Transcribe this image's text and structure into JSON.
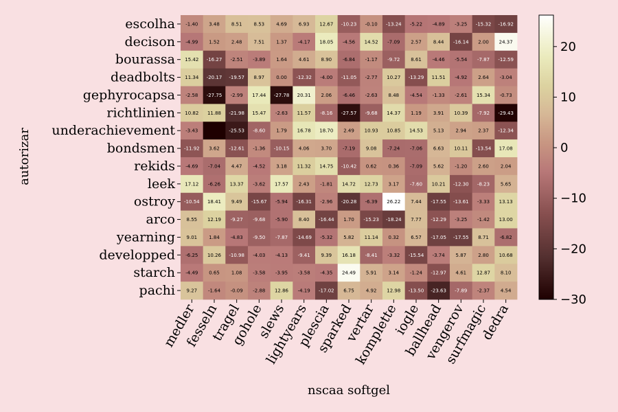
{
  "chart_data": {
    "type": "heatmap",
    "title": "",
    "xlabel": "nscaa softgel",
    "ylabel": "autorizar",
    "x_categories": [
      "medler",
      "fesseln",
      "tragel",
      "gohole",
      "slews",
      "lightyears",
      "plescia",
      "sparked",
      "vertar",
      "komplette",
      "iogle",
      "ballhead",
      "vengerov",
      "surfmagic",
      "dedra"
    ],
    "y_categories": [
      "escolha",
      "decison",
      "bourassa",
      "deadbolts",
      "gephyrocapsa",
      "richtlinien",
      "underachievement",
      "bondsmen",
      "rekids",
      "leek",
      "ostroy",
      "arco",
      "yearning",
      "developped",
      "starch",
      "pachi"
    ],
    "values": [
      [
        -1.4,
        3.48,
        8.51,
        8.53,
        4.69,
        6.93,
        12.67,
        -10.23,
        -0.1,
        -13.24,
        -5.22,
        -4.89,
        -3.25,
        -15.32,
        -16.92
      ],
      [
        -4.99,
        1.52,
        2.48,
        7.51,
        1.37,
        -4.17,
        18.05,
        -4.56,
        14.52,
        -7.09,
        2.57,
        8.44,
        -16.14,
        2.0,
        24.37
      ],
      [
        15.42,
        -16.27,
        -2.51,
        -3.89,
        1.64,
        4.61,
        8.9,
        -6.84,
        -1.17,
        -9.72,
        8.61,
        -4.46,
        -5.54,
        -7.87,
        -12.59
      ],
      [
        11.34,
        -20.17,
        -19.57,
        8.97,
        0.0,
        -12.32,
        -4.0,
        -11.05,
        -2.77,
        10.27,
        -13.29,
        11.51,
        -4.92,
        2.64,
        -3.04
      ],
      [
        -2.58,
        -27.75,
        -2.99,
        17.44,
        -27.78,
        20.31,
        2.06,
        -6.46,
        -2.63,
        8.48,
        -4.54,
        -1.33,
        -2.61,
        15.34,
        -0.73
      ],
      [
        10.82,
        11.88,
        -21.98,
        15.47,
        -2.63,
        11.57,
        -8.16,
        -27.57,
        -9.68,
        14.37,
        1.19,
        3.91,
        10.39,
        -7.92,
        -29.43
      ],
      [
        -3.43,
        -30.0,
        -25.53,
        -8.6,
        1.79,
        16.78,
        18.7,
        2.49,
        10.93,
        10.85,
        14.53,
        5.13,
        2.94,
        2.37,
        -12.34
      ],
      [
        -11.92,
        3.62,
        -12.61,
        -1.36,
        -10.15,
        4.06,
        3.7,
        -7.19,
        9.08,
        -7.24,
        -7.06,
        6.63,
        10.11,
        -13.54,
        17.08
      ],
      [
        -4.69,
        -7.04,
        4.47,
        -4.52,
        3.18,
        11.32,
        14.75,
        -10.42,
        0.62,
        0.36,
        -7.09,
        5.62,
        -1.2,
        2.6,
        2.04
      ],
      [
        17.12,
        -6.26,
        13.37,
        -3.62,
        17.57,
        2.43,
        -1.81,
        14.72,
        12.73,
        3.17,
        -7.6,
        10.21,
        -12.3,
        -8.23,
        5.65
      ],
      [
        -10.54,
        18.41,
        9.49,
        -15.67,
        -5.94,
        -16.31,
        -2.96,
        -20.28,
        -6.39,
        26.22,
        7.44,
        -17.55,
        -13.61,
        -3.33,
        13.13
      ],
      [
        8.55,
        12.19,
        -9.27,
        -9.68,
        -5.9,
        8.4,
        -16.44,
        1.7,
        -15.23,
        -18.24,
        7.77,
        -12.29,
        -3.25,
        -1.42,
        13.0
      ],
      [
        9.01,
        1.84,
        -4.83,
        -9.5,
        -7.87,
        -14.69,
        -5.32,
        5.82,
        11.14,
        0.32,
        6.57,
        -17.05,
        -17.55,
        8.71,
        -6.82
      ],
      [
        -6.25,
        10.26,
        -10.98,
        -4.03,
        -4.13,
        -9.41,
        9.39,
        16.18,
        -8.41,
        -3.32,
        -15.54,
        -3.74,
        5.87,
        2.8,
        10.68
      ],
      [
        -4.49,
        0.65,
        1.08,
        -3.58,
        -3.95,
        -3.58,
        -4.35,
        24.49,
        5.91,
        3.14,
        -1.24,
        -12.97,
        4.61,
        12.87,
        8.1
      ],
      [
        9.27,
        -1.64,
        -0.09,
        -2.88,
        12.86,
        -4.19,
        -17.02,
        6.75,
        4.92,
        12.98,
        -13.5,
        -23.63,
        -7.89,
        -2.37,
        4.54
      ]
    ],
    "cell_labels": [
      [
        "-1.40",
        "3.48",
        "8.51",
        "8.53",
        "4.69",
        "6.93",
        "12.67",
        "-10.23",
        "-0.10",
        "-13.24",
        "-5.22",
        "-4.89",
        "-3.25",
        "-15.32",
        "-16.92"
      ],
      [
        "-4.99",
        "1.52",
        "2.48",
        "7.51",
        "1.37",
        "-4.17",
        "18.05",
        "-4.56",
        "14.52",
        "-7.09",
        "2.57",
        "8.44",
        "-16.14",
        "2.00",
        "24.37"
      ],
      [
        "15.42",
        "-16.27",
        "-2.51",
        "-3.89",
        "1.64",
        "4.61",
        "8.90",
        "-6.84",
        "-1.17",
        "-9.72",
        "8.61",
        "-4.46",
        "-5.54",
        "-7.87",
        "-12.59"
      ],
      [
        "11.34",
        "-20.17",
        "-19.57",
        "8.97",
        "0.00",
        "-12.32",
        "-4.00",
        "-11.05",
        "-2.77",
        "10.27",
        "-13.29",
        "11.51",
        "-4.92",
        "2.64",
        "-3.04"
      ],
      [
        "-2.58",
        "-27.75",
        "-2.99",
        "17.44",
        "-27.78",
        "20.31",
        "2.06",
        "-6.46",
        "-2.63",
        "8.48",
        "-4.54",
        "-1.33",
        "-2.61",
        "15.34",
        "-0.73"
      ],
      [
        "10.82",
        "11.88",
        "-21.98",
        "15.47",
        "-2.63",
        "11.57",
        "-8.16",
        "-27.57",
        "-9.68",
        "14.37",
        "1.19",
        "3.91",
        "10.39",
        "-7.92",
        "-29.43"
      ],
      [
        "-3.43",
        "",
        "-25.53",
        "-8.60",
        "1.79",
        "16.78",
        "18.70",
        "2.49",
        "10.93",
        "10.85",
        "14.53",
        "5.13",
        "2.94",
        "2.37",
        "-12.34"
      ],
      [
        "-11.92",
        "3.62",
        "-12.61",
        "-1.36",
        "-10.15",
        "4.06",
        "3.70",
        "-7.19",
        "9.08",
        "-7.24",
        "-7.06",
        "6.63",
        "10.11",
        "-13.54",
        "17.08"
      ],
      [
        "-4.69",
        "-7.04",
        "4.47",
        "-4.52",
        "3.18",
        "11.32",
        "14.75",
        "-10.42",
        "0.62",
        "0.36",
        "-7.09",
        "5.62",
        "-1.20",
        "2.60",
        "2.04"
      ],
      [
        "17.12",
        "-6.26",
        "13.37",
        "-3.62",
        "17.57",
        "2.43",
        "-1.81",
        "14.72",
        "12.73",
        "3.17",
        "-7.60",
        "10.21",
        "-12.30",
        "-8.23",
        "5.65"
      ],
      [
        "-10.54",
        "18.41",
        "9.49",
        "-15.67",
        "-5.94",
        "-16.31",
        "-2.96",
        "-20.28",
        "-6.39",
        "26.22",
        "7.44",
        "-17.55",
        "-13.61",
        "-3.33",
        "13.13"
      ],
      [
        "8.55",
        "12.19",
        "-9.27",
        "-9.68",
        "-5.90",
        "8.40",
        "-16.44",
        "1.70",
        "-15.23",
        "-18.24",
        "7.77",
        "-12.29",
        "-3.25",
        "-1.42",
        "13.00"
      ],
      [
        "9.01",
        "1.84",
        "-4.83",
        "-9.50",
        "-7.87",
        "-14.69",
        "-5.32",
        "5.82",
        "11.14",
        "0.32",
        "6.57",
        "-17.05",
        "-17.55",
        "8.71",
        "-6.82"
      ],
      [
        "-6.25",
        "10.26",
        "-10.98",
        "-4.03",
        "-4.13",
        "-9.41",
        "9.39",
        "16.18",
        "-8.41",
        "-3.32",
        "-15.54",
        "-3.74",
        "5.87",
        "2.80",
        "10.68"
      ],
      [
        "-4.49",
        "0.65",
        "1.08",
        "-3.58",
        "-3.95",
        "-3.58",
        "-4.35",
        "24.49",
        "5.91",
        "3.14",
        "-1.24",
        "-12.97",
        "4.61",
        "12.87",
        "8.10"
      ],
      [
        "9.27",
        "-1.64",
        "-0.09",
        "-2.88",
        "12.86",
        "-4.19",
        "-17.02",
        "6.75",
        "4.92",
        "12.98",
        "-13.50",
        "-23.63",
        "-7.89",
        "-2.37",
        "4.54"
      ]
    ],
    "colorbar": {
      "range": [
        -30.0,
        26.22
      ],
      "ticks": [
        20,
        10,
        0,
        -10,
        -20,
        -30
      ],
      "tick_labels": [
        "20",
        "10",
        "0",
        "−10",
        "−20",
        "−30"
      ],
      "colormap": "pink",
      "placement": "right"
    },
    "x_tick_rotation": 60,
    "grid": false
  }
}
